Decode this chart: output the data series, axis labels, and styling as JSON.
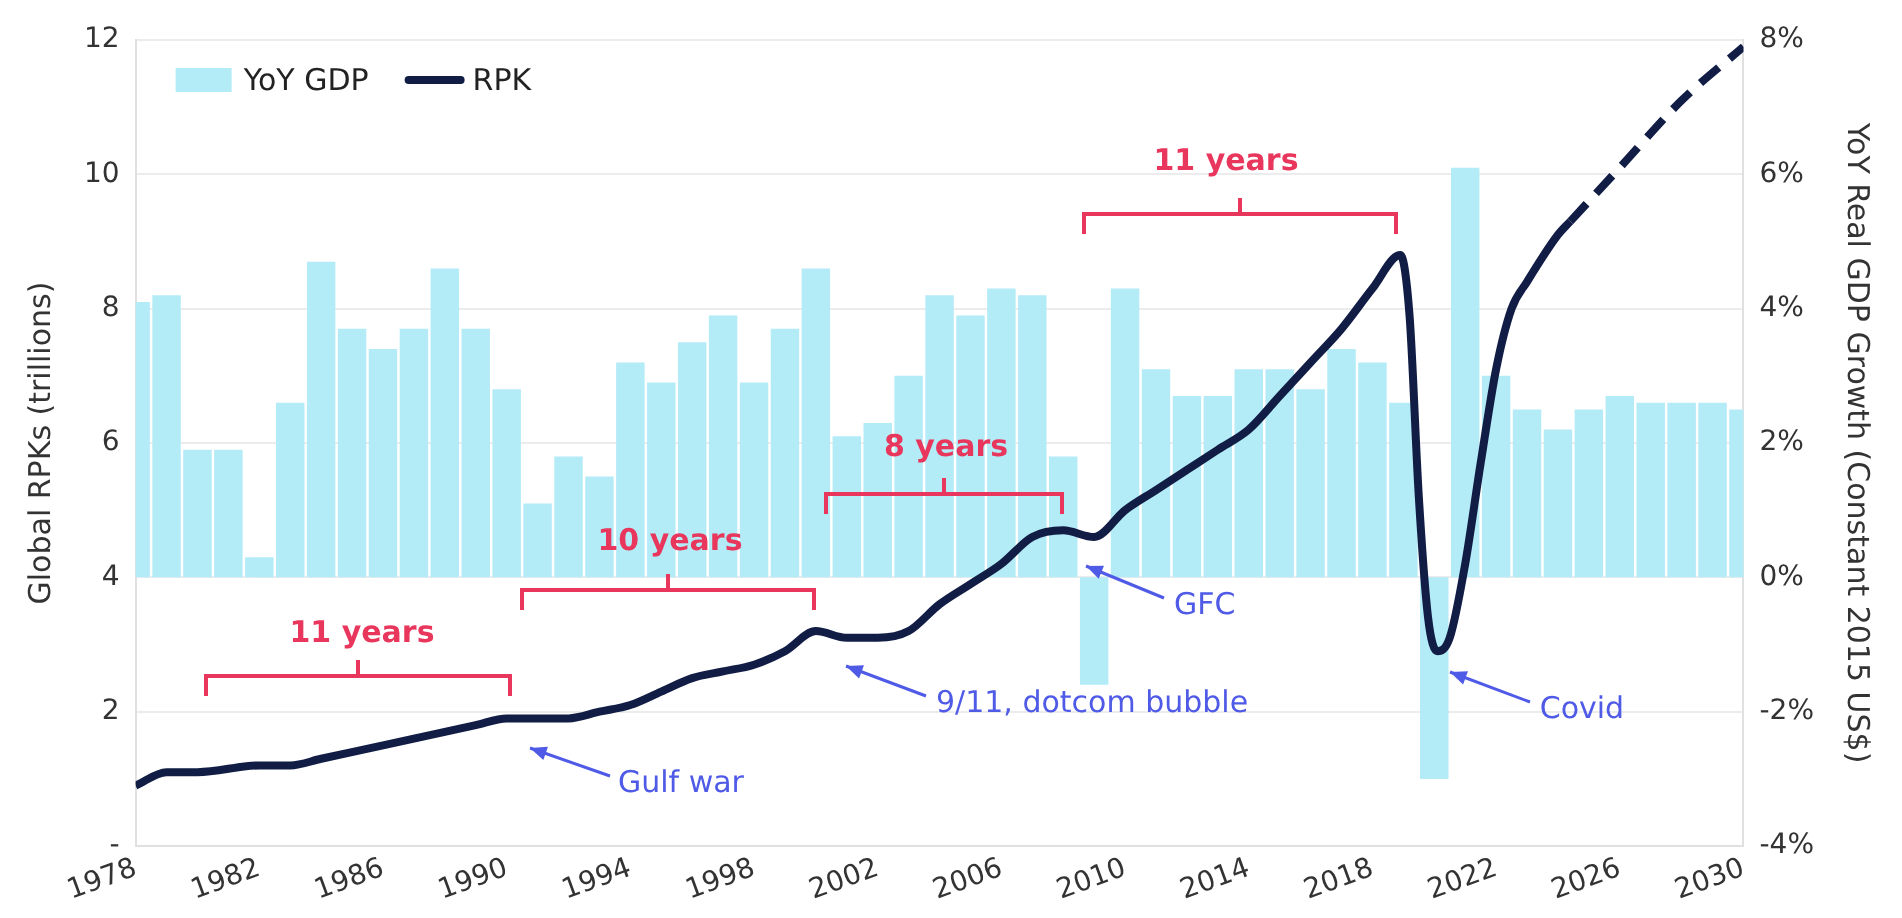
{
  "chart_data": {
    "type": "bar",
    "x": [
      1978,
      1979,
      1980,
      1981,
      1982,
      1983,
      1984,
      1985,
      1986,
      1987,
      1988,
      1989,
      1990,
      1991,
      1992,
      1993,
      1994,
      1995,
      1996,
      1997,
      1998,
      1999,
      2000,
      2001,
      2002,
      2003,
      2004,
      2005,
      2006,
      2007,
      2008,
      2009,
      2010,
      2011,
      2012,
      2013,
      2014,
      2015,
      2016,
      2017,
      2018,
      2019,
      2020,
      2021,
      2022,
      2023,
      2024,
      2025,
      2026,
      2027,
      2028,
      2029,
      2030
    ],
    "series": [
      {
        "name": "YoY GDP",
        "axis": "y2",
        "color": "#b3ebf7",
        "values": [
          4.1,
          4.2,
          1.9,
          1.9,
          0.3,
          2.6,
          4.7,
          3.7,
          3.4,
          3.7,
          4.6,
          3.7,
          2.8,
          1.1,
          1.8,
          1.5,
          3.2,
          2.9,
          3.5,
          3.9,
          2.9,
          3.7,
          4.6,
          2.1,
          2.3,
          3.0,
          4.2,
          3.9,
          4.3,
          4.2,
          1.8,
          -1.6,
          4.3,
          3.1,
          2.7,
          2.7,
          3.1,
          3.1,
          2.8,
          3.4,
          3.2,
          2.6,
          -3.0,
          6.1,
          3.0,
          2.5,
          2.2,
          2.5,
          2.7,
          2.6,
          2.6,
          2.6,
          2.5
        ]
      },
      {
        "name": "RPK",
        "type": "line",
        "axis": "y",
        "color": "#111d45",
        "line_style": "solid",
        "x": [
          1978,
          1979,
          1980,
          1982,
          1983,
          1984,
          1986,
          1988,
          1989,
          1990,
          1991,
          1992,
          1993,
          1994,
          1995,
          1996,
          1997,
          1998,
          1999,
          2000,
          2001,
          2002,
          2003,
          2004,
          2005,
          2006,
          2007,
          2008,
          2009,
          2010,
          2011,
          2012,
          2013,
          2014,
          2015,
          2016,
          2017,
          2018,
          2018.9,
          2019.2,
          2019.5,
          2019.8,
          2020.1,
          2020.5,
          2021,
          2021.5,
          2022,
          2022.5,
          2023,
          2024,
          2024.4
        ],
        "values": [
          0.9,
          1.1,
          1.1,
          1.2,
          1.2,
          1.3,
          1.5,
          1.7,
          1.8,
          1.9,
          1.9,
          1.9,
          2.0,
          2.1,
          2.3,
          2.5,
          2.6,
          2.7,
          2.9,
          3.2,
          3.1,
          3.1,
          3.2,
          3.6,
          3.9,
          4.2,
          4.6,
          4.7,
          4.6,
          5.0,
          5.3,
          5.6,
          5.9,
          6.2,
          6.7,
          7.2,
          7.7,
          8.3,
          8.8,
          7.9,
          5.2,
          3.4,
          2.9,
          3.1,
          4.2,
          5.7,
          7.1,
          8.0,
          8.4,
          9.1,
          9.3
        ]
      },
      {
        "type": "line",
        "axis": "y",
        "color": "#111d45",
        "line_style": "dashed",
        "x": [
          2024.4,
          2026,
          2028,
          2030
        ],
        "values": [
          9.3,
          10.1,
          11.1,
          11.9
        ]
      }
    ],
    "ylabel": "Global RPKs (trillions)",
    "y2label": "YoY Real GDP Growth (Constant 2015 US$)",
    "xlim": [
      1978,
      2030
    ],
    "xticks": [
      1978,
      1982,
      1986,
      1990,
      1994,
      1998,
      2002,
      2006,
      2010,
      2014,
      2018,
      2022,
      2026,
      2030
    ],
    "ylim": [
      0,
      12
    ],
    "yticks": [
      {
        "value": 0,
        "label": "-"
      },
      2,
      4,
      6,
      8,
      10,
      12
    ],
    "y2lim": [
      -4,
      8
    ],
    "y2ticks": [
      {
        "value": -4,
        "label": "-4%"
      },
      {
        "value": -2,
        "label": "-2%"
      },
      {
        "value": 0,
        "label": "0%"
      },
      {
        "value": 2,
        "label": "2%"
      },
      {
        "value": 4,
        "label": "4%"
      },
      {
        "value": 6,
        "label": "6%"
      },
      {
        "value": 8,
        "label": "8%"
      }
    ],
    "grid": "y",
    "legend": "top left",
    "marker": "none",
    "annotations": [
      "11 years",
      "10 years",
      "8 years",
      "11 years",
      "Gulf war",
      "9/11, dotcom bubble",
      "GFC",
      {
        "text": "Covid",
        "x": 2020.5,
        "y": 2.6
      }
    ]
  }
}
